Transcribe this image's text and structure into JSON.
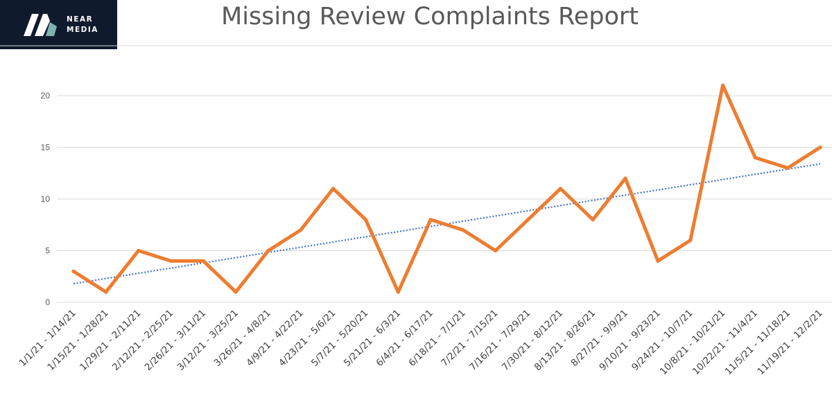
{
  "brand": {
    "line1": "NEAR",
    "line2": "MEDIA",
    "bg_color": "#0f1a2c",
    "accent_color": "#7fb3ad"
  },
  "chart_data": {
    "type": "line",
    "title": "Missing Review Complaints Report",
    "xlabel": "",
    "ylabel": "",
    "ylim": [
      0,
      25
    ],
    "yticks": [
      0,
      5,
      10,
      15,
      20
    ],
    "grid": true,
    "legend": "none",
    "categories": [
      "1/1/21 - 1/14/21",
      "1/15/21 - 1/28/21",
      "1/29/21 - 2/11/21",
      "2/12/21 - 2/25/21",
      "2/26/21 - 3/11/21",
      "3/12/21 - 3/25/21",
      "3/26/21 - 4/8/21",
      "4/9/21 - 4/22/21",
      "4/23/21 - 5/6/21",
      "5/7/21 - 5/20/21",
      "5/21/21 - 6/3/21",
      "6/4/21 - 6/17/21",
      "6/18/21 - 7/1/21",
      "7/2/21 - 7/15/21",
      "7/16/21 - 7/29/21",
      "7/30/21 - 8/12/21",
      "8/13/21 - 8/26/21",
      "8/27/21 - 9/9/21",
      "9/10/21 - 9/23/21",
      "9/24/21 - 10/7/21",
      "10/8/21 - 10/21/21",
      "10/22/21 - 11/4/21",
      "11/5/21 - 11/18/21",
      "11/19/21 - 12/2/21"
    ],
    "series": [
      {
        "values": [
          3,
          1,
          5,
          4,
          4,
          1,
          5,
          7,
          11,
          8,
          1,
          8,
          7,
          5,
          8,
          11,
          8,
          12,
          4,
          6,
          21,
          14,
          13,
          15
        ],
        "color": "#ed7d31"
      }
    ],
    "trendline": {
      "type": "linear",
      "start": 1.8,
      "end": 13.4,
      "color": "#4472c4",
      "style": "dotted"
    }
  }
}
